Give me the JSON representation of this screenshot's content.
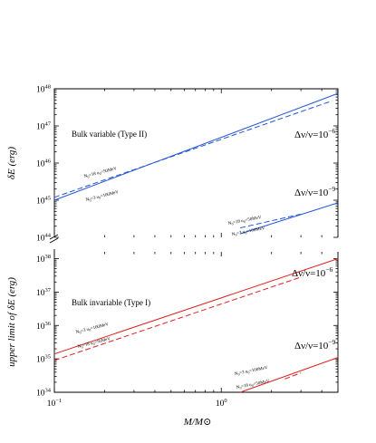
{
  "chart_data": [
    {
      "type": "line",
      "title": "Bulk variable (Type II)",
      "xlabel": "M/M⊙",
      "ylabel": "δE (erg)",
      "xscale": "log",
      "yscale": "log",
      "xlim": [
        0.1,
        5
      ],
      "ylim": [
        1e+44,
        1e+48
      ],
      "x_ticks": [
        {
          "base": "10",
          "exp": "−1"
        },
        {
          "base": "10",
          "exp": "0"
        }
      ],
      "y_ticks": [
        {
          "base": "10",
          "exp": "44"
        },
        {
          "base": "10",
          "exp": "45"
        },
        {
          "base": "10",
          "exp": "46"
        },
        {
          "base": "10",
          "exp": "47"
        },
        {
          "base": "10",
          "exp": "48"
        }
      ],
      "annotations": [
        {
          "text": "Δν/ν=10",
          "sup": "−6"
        },
        {
          "text": "Δν/ν=10",
          "sup": "−9"
        }
      ],
      "color": "#2456d6",
      "series": [
        {
          "group": "−6",
          "style": "dashed",
          "label_main": "N",
          "label_sub": "0",
          "label_rest": "=18  u",
          "label_sub2": "0",
          "label_end": "=50MeV",
          "x": [
            0.1,
            4.6
          ],
          "y": [
            1.2e+45,
            4.7e+47
          ]
        },
        {
          "group": "−6",
          "style": "solid",
          "label_main": "N",
          "label_sub": "0",
          "label_rest": "=3  u",
          "label_sub2": "0",
          "label_end": "=100MeV",
          "x": [
            0.1,
            5.0
          ],
          "y": [
            1e+45,
            7.5e+47
          ]
        },
        {
          "group": "−9",
          "style": "dashed",
          "label_main": "N",
          "label_sub": "0",
          "label_rest": "=18  u",
          "label_sub2": "0",
          "label_end": "=50MeV",
          "x": [
            1.3,
            3.0
          ],
          "y": [
            1.8e+44,
            4.2e+44
          ]
        },
        {
          "group": "−9",
          "style": "solid",
          "label_main": "N",
          "label_sub": "0",
          "label_rest": "=3  u",
          "label_sub2": "0",
          "label_end": "=100MeV",
          "x": [
            1.3,
            5.0
          ],
          "y": [
            1.25e+44,
            8.5e+44
          ]
        }
      ]
    },
    {
      "type": "line",
      "title": "Bulk invariable (Type I)",
      "xlabel": "M/M⊙",
      "ylabel": "upper limit of δE (erg)",
      "xscale": "log",
      "yscale": "log",
      "xlim": [
        0.1,
        5
      ],
      "ylim": [
        1e+34,
        1.6e+38
      ],
      "x_ticks": [
        {
          "base": "10",
          "exp": "−1"
        },
        {
          "base": "10",
          "exp": "0"
        }
      ],
      "y_ticks": [
        {
          "base": "10",
          "exp": "34"
        },
        {
          "base": "10",
          "exp": "35"
        },
        {
          "base": "10",
          "exp": "36"
        },
        {
          "base": "10",
          "exp": "37"
        },
        {
          "base": "10",
          "exp": "38"
        }
      ],
      "annotations": [
        {
          "text": "Δν/ν=10",
          "sup": "−6"
        },
        {
          "text": "Δν/ν=10",
          "sup": "−9"
        }
      ],
      "color": "#e02020",
      "series": [
        {
          "group": "−6",
          "style": "solid",
          "label_main": "N",
          "label_sub": "0",
          "label_rest": "=3  u",
          "label_sub2": "0",
          "label_end": "=100MeV",
          "x": [
            0.1,
            5.0
          ],
          "y": [
            1.4e+35,
            1e+38
          ]
        },
        {
          "group": "−6",
          "style": "dashed",
          "label_main": "N",
          "label_sub": "0",
          "label_rest": "=18  u",
          "label_sub2": "0",
          "label_end": "=50MeV",
          "x": [
            0.1,
            3.0
          ],
          "y": [
            9e+34,
            2.8e+37
          ]
        },
        {
          "group": "−9",
          "style": "solid",
          "label_main": "N",
          "label_sub": "0",
          "label_rest": "=3  u",
          "label_sub2": "0",
          "label_end": "=100MeV",
          "x": [
            1.3,
            5.0
          ],
          "y": [
            1e+34,
            1.1e+35
          ]
        },
        {
          "group": "−9",
          "style": "dashed",
          "label_main": "N",
          "label_sub": "0",
          "label_rest": "=18  u",
          "label_sub2": "0",
          "label_end": "=50MeV",
          "x": [
            2.4,
            3.0
          ],
          "y": [
            2.5e+34,
            3.8e+34
          ]
        }
      ]
    }
  ]
}
